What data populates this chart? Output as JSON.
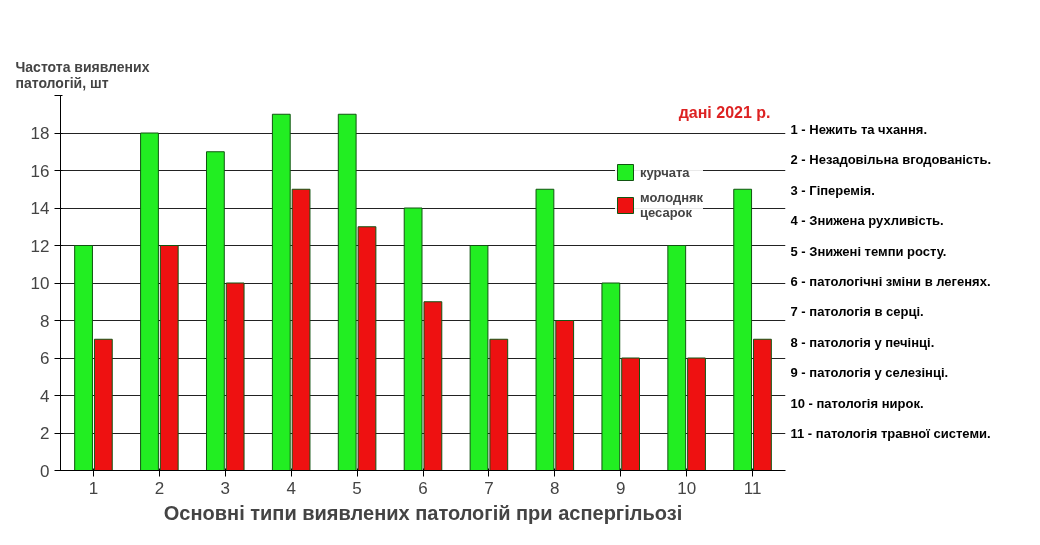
{
  "chart_data": {
    "type": "bar",
    "ylabel": "Частота виявлених\nпатологій, шт",
    "xlabel": "Основні типи виявлених патологій при аспергільозі",
    "subtitle": "дані 2021 р.",
    "categories": [
      "1",
      "2",
      "3",
      "4",
      "5",
      "6",
      "7",
      "8",
      "9",
      "10",
      "11"
    ],
    "series": [
      {
        "name": "курчата",
        "color": "#22ee22",
        "values": [
          12,
          18,
          17,
          19,
          19,
          14,
          12,
          15,
          10,
          12,
          15
        ]
      },
      {
        "name": "молодняк\nцесарок",
        "color": "#ee1111",
        "values": [
          7,
          12,
          10,
          15,
          13,
          9,
          7,
          8,
          6,
          6,
          7
        ]
      }
    ],
    "ylim": [
      0,
      20
    ],
    "yticks": [
      0,
      2,
      4,
      6,
      8,
      10,
      12,
      14,
      16,
      18,
      {
        "value": 20,
        "label": null
      }
    ],
    "grid": "y",
    "legend": "top right",
    "annotations": [
      "1 - Нежить та чхання.",
      "2 - Незадовільна вгодованість.",
      "3 - Гіперемія.",
      "4 - Знижена рухливість.",
      "5 - Знижені темпи росту.",
      "6 - патологічні зміни в легенях.",
      "7 - патологія в серці.",
      "8 - патологія у печінці.",
      "9 - патологія у селезінці.",
      "10 - патологія нирок.",
      "11 - патологія травної системи."
    ]
  }
}
